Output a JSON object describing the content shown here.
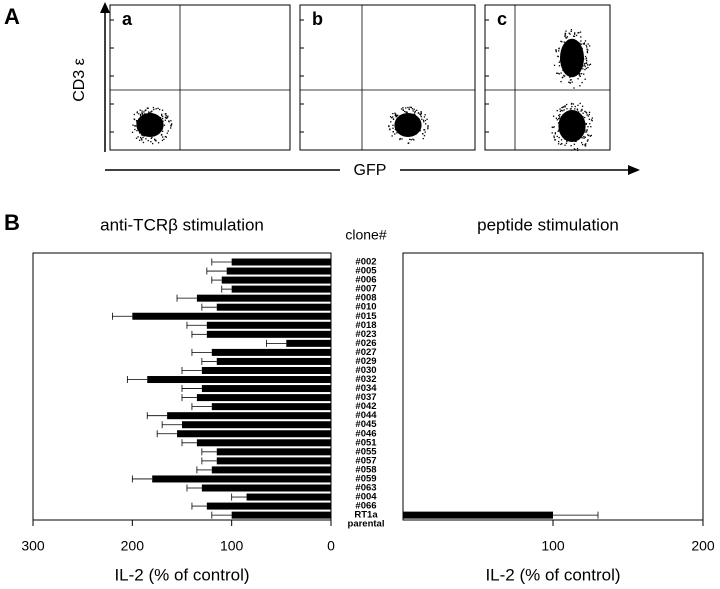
{
  "panel_labels": [
    "A",
    "B"
  ],
  "flow": {
    "plots": [
      "a",
      "b",
      "c"
    ],
    "y_label": "CD3 ε",
    "x_label": "GFP"
  },
  "chart_data": [
    {
      "type": "hbar",
      "title": "anti-TCRβ stimulation",
      "x_label": "IL-2 (% of control)",
      "category_title": "clone#",
      "categories": [
        "#002",
        "#005",
        "#006",
        "#007",
        "#008",
        "#010",
        "#015",
        "#018",
        "#023",
        "#026",
        "#027",
        "#029",
        "#030",
        "#032",
        "#034",
        "#037",
        "#042",
        "#044",
        "#045",
        "#046",
        "#051",
        "#055",
        "#057",
        "#058",
        "#059",
        "#063",
        "#004",
        "#066",
        "RT1a",
        "parental"
      ],
      "values": [
        100,
        105,
        110,
        100,
        135,
        115,
        200,
        125,
        125,
        45,
        120,
        115,
        130,
        185,
        130,
        135,
        120,
        165,
        150,
        155,
        135,
        115,
        115,
        120,
        180,
        130,
        85,
        125,
        100,
        null
      ],
      "errors": [
        20,
        20,
        10,
        10,
        20,
        15,
        20,
        20,
        15,
        20,
        20,
        15,
        20,
        20,
        20,
        15,
        20,
        20,
        20,
        20,
        15,
        15,
        15,
        15,
        20,
        15,
        15,
        15,
        20,
        null
      ],
      "color": "#000000",
      "xlim": [
        300,
        0
      ],
      "xticks": [
        300,
        200,
        100,
        0
      ]
    },
    {
      "type": "hbar",
      "title": "peptide stimulation",
      "x_label": "IL-2 (% of control)",
      "values": [
        null,
        null,
        null,
        null,
        null,
        null,
        null,
        null,
        null,
        null,
        null,
        null,
        null,
        null,
        null,
        null,
        null,
        null,
        null,
        null,
        null,
        null,
        null,
        null,
        null,
        null,
        null,
        null,
        100,
        null
      ],
      "errors": [
        null,
        null,
        null,
        null,
        null,
        null,
        null,
        null,
        null,
        null,
        null,
        null,
        null,
        null,
        null,
        null,
        null,
        null,
        null,
        null,
        null,
        null,
        null,
        null,
        null,
        null,
        null,
        null,
        30,
        null
      ],
      "color": "#000000",
      "xlim": [
        0,
        200
      ],
      "xticks": [
        100,
        200
      ]
    }
  ]
}
